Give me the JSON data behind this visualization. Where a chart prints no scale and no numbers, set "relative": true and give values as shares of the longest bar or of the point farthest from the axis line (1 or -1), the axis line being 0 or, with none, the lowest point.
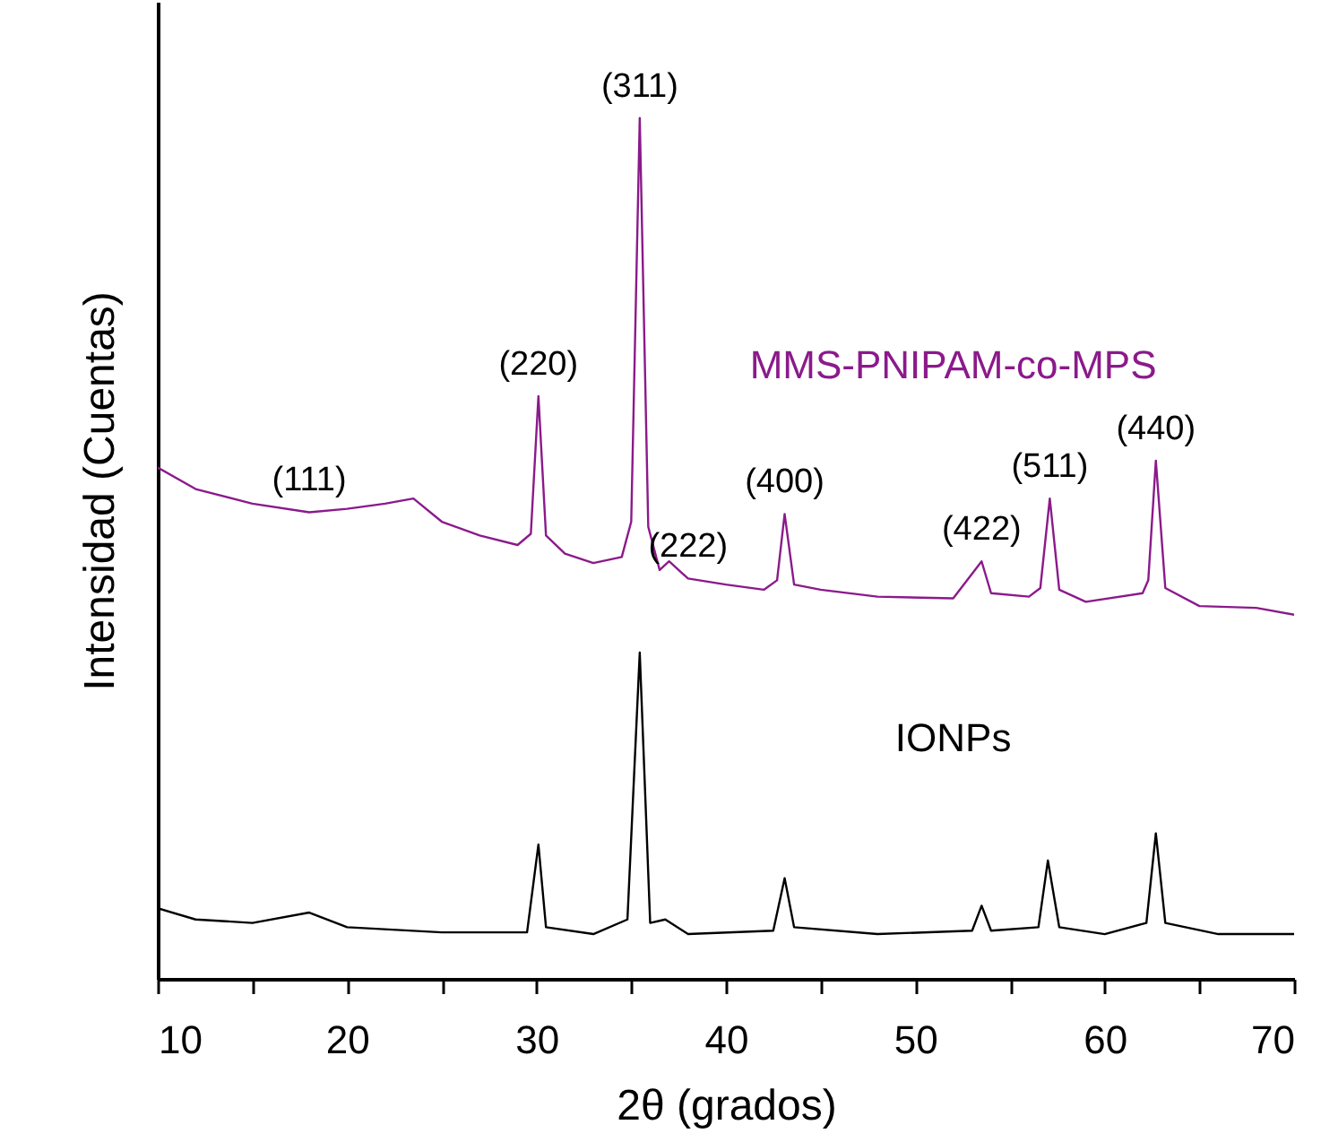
{
  "chart_data": {
    "type": "line",
    "relative": true,
    "xlabel": "2θ (grados)",
    "ylabel": "Intensidad (Cuentas)",
    "xlim": [
      10,
      70
    ],
    "xticks": [
      10,
      {
        "value": 15,
        "label": null
      },
      20,
      {
        "value": 25,
        "label": null
      },
      30,
      {
        "value": 35,
        "label": null
      },
      40,
      {
        "value": 45,
        "label": null
      },
      50,
      {
        "value": 55,
        "label": null
      },
      60,
      {
        "value": 65,
        "label": null
      },
      70
    ],
    "series": [
      {
        "name": "MMS-PNIPAM-co-MPS",
        "color": "#8b1a8b",
        "x": [
          10,
          12,
          15,
          18,
          20,
          22,
          23.5,
          25,
          27,
          29,
          29.7,
          30.1,
          30.5,
          31.5,
          33,
          34.5,
          35,
          35.45,
          35.9,
          36.5,
          37,
          38,
          40,
          42,
          42.7,
          43.1,
          43.6,
          45,
          48,
          52,
          53.5,
          54,
          56,
          56.6,
          57.1,
          57.6,
          59,
          62,
          62.3,
          62.7,
          63.2,
          65,
          68,
          70
        ],
        "values": [
          0.594,
          0.569,
          0.552,
          0.542,
          0.546,
          0.552,
          0.558,
          0.531,
          0.515,
          0.504,
          0.517,
          0.677,
          0.515,
          0.494,
          0.483,
          0.49,
          0.531,
          1,
          0.525,
          0.475,
          0.485,
          0.465,
          0.458,
          0.452,
          0.463,
          0.54,
          0.458,
          0.452,
          0.444,
          0.442,
          0.485,
          0.448,
          0.444,
          0.454,
          0.558,
          0.452,
          0.438,
          0.448,
          0.463,
          0.602,
          0.454,
          0.433,
          0.431,
          0.423
        ]
      },
      {
        "name": "IONPs",
        "color": "#000000",
        "x": [
          10,
          12,
          15,
          18,
          20,
          25,
          29.5,
          30.1,
          30.5,
          33,
          34.8,
          35.45,
          36,
          36.8,
          38,
          42.5,
          43.1,
          43.6,
          48,
          53,
          53.5,
          54,
          56.5,
          57,
          57.6,
          60,
          62.2,
          62.7,
          63.2,
          66,
          70
        ],
        "values": [
          0.082,
          0.069,
          0.065,
          0.077,
          0.06,
          0.054,
          0.054,
          0.156,
          0.06,
          0.052,
          0.069,
          0.379,
          0.065,
          0.069,
          0.052,
          0.056,
          0.117,
          0.06,
          0.052,
          0.056,
          0.085,
          0.056,
          0.06,
          0.1375,
          0.06,
          0.052,
          0.065,
          0.169,
          0.065,
          0.052,
          0.052
        ]
      }
    ],
    "annotations": [
      {
        "text": "(111)",
        "x": 18,
        "y": 0.542
      },
      {
        "text": "(220)",
        "x": 30.1,
        "y": 0.677
      },
      {
        "text": "(311)",
        "x": 35.45,
        "y": 1
      },
      {
        "text": "(222)",
        "x": 38,
        "y": 0.465
      },
      {
        "text": "(400)",
        "x": 43.1,
        "y": 0.54
      },
      {
        "text": "(422)",
        "x": 53.5,
        "y": 0.485
      },
      {
        "text": "(511)",
        "x": 57.1,
        "y": 0.558
      },
      {
        "text": "(440)",
        "x": 62.7,
        "y": 0.602
      }
    ]
  }
}
